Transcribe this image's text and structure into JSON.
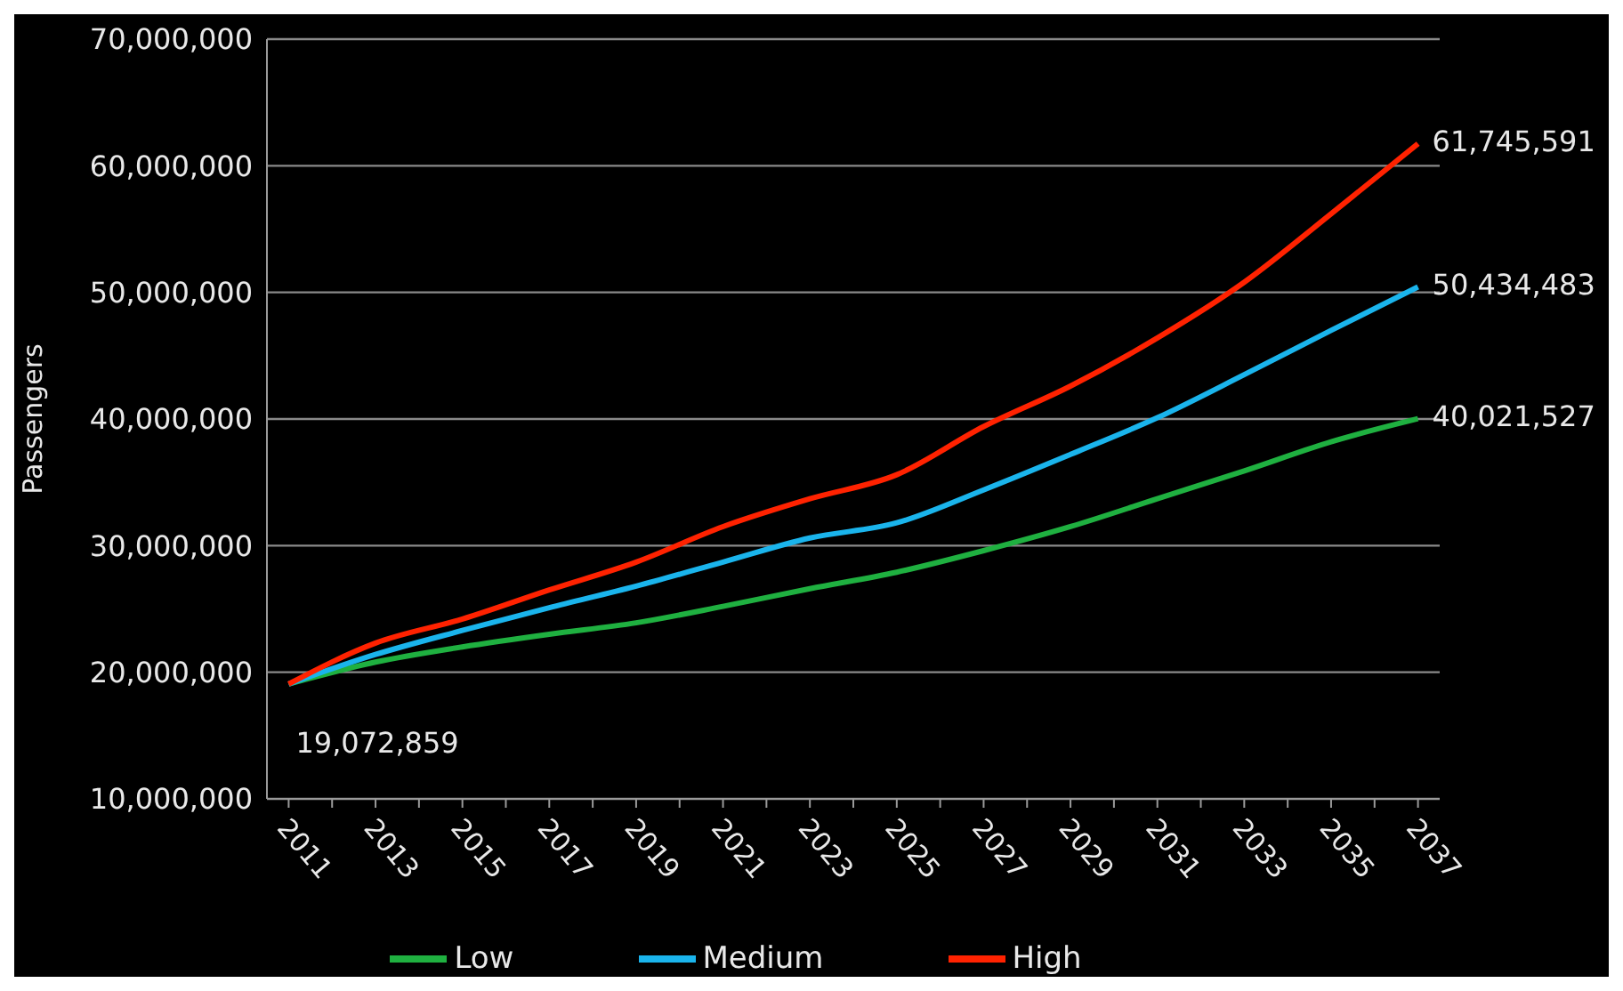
{
  "chart_data": {
    "type": "line",
    "ylabel": "Passengers",
    "x": [
      2011,
      2013,
      2015,
      2017,
      2019,
      2021,
      2023,
      2025,
      2027,
      2029,
      2031,
      2033,
      2035,
      2037
    ],
    "series": [
      {
        "name": "Low",
        "color": "#1fb040",
        "values": [
          19072859,
          20800000,
          22000000,
          23000000,
          23900000,
          25200000,
          26600000,
          27900000,
          29600000,
          31500000,
          33700000,
          35900000,
          38200000,
          40021527
        ],
        "value_labels": [
          "19,072,859",
          null,
          null,
          null,
          null,
          null,
          null,
          null,
          null,
          null,
          null,
          null,
          null,
          "40,021,527"
        ]
      },
      {
        "name": "Medium",
        "color": "#1ab4ec",
        "values": [
          19072859,
          21400000,
          23300000,
          25100000,
          26800000,
          28700000,
          30600000,
          31800000,
          34400000,
          37200000,
          40100000,
          43500000,
          47000000,
          50434483
        ],
        "value_labels": [
          null,
          null,
          null,
          null,
          null,
          null,
          null,
          null,
          null,
          null,
          null,
          null,
          null,
          "50,434,483"
        ]
      },
      {
        "name": "High",
        "color": "#ff2200",
        "values": [
          19072859,
          22300000,
          24200000,
          26500000,
          28700000,
          31500000,
          33700000,
          35600000,
          39400000,
          42600000,
          46400000,
          50800000,
          56200000,
          61745591
        ],
        "value_labels": [
          null,
          null,
          null,
          null,
          null,
          null,
          null,
          null,
          null,
          null,
          null,
          null,
          null,
          "61,745,591"
        ]
      }
    ],
    "xlim": [
      2010.5,
      2037.5
    ],
    "xticks": [
      {
        "value": 2011,
        "label": "2011"
      },
      {
        "value": 2012,
        "label": null
      },
      {
        "value": 2013,
        "label": "2013"
      },
      {
        "value": 2014,
        "label": null
      },
      {
        "value": 2015,
        "label": "2015"
      },
      {
        "value": 2016,
        "label": null
      },
      {
        "value": 2017,
        "label": "2017"
      },
      {
        "value": 2018,
        "label": null
      },
      {
        "value": 2019,
        "label": "2019"
      },
      {
        "value": 2020,
        "label": null
      },
      {
        "value": 2021,
        "label": "2021"
      },
      {
        "value": 2022,
        "label": null
      },
      {
        "value": 2023,
        "label": "2023"
      },
      {
        "value": 2024,
        "label": null
      },
      {
        "value": 2025,
        "label": "2025"
      },
      {
        "value": 2026,
        "label": null
      },
      {
        "value": 2027,
        "label": "2027"
      },
      {
        "value": 2028,
        "label": null
      },
      {
        "value": 2029,
        "label": "2029"
      },
      {
        "value": 2030,
        "label": null
      },
      {
        "value": 2031,
        "label": "2031"
      },
      {
        "value": 2032,
        "label": null
      },
      {
        "value": 2033,
        "label": "2033"
      },
      {
        "value": 2034,
        "label": null
      },
      {
        "value": 2035,
        "label": "2035"
      },
      {
        "value": 2036,
        "label": null
      },
      {
        "value": 2037,
        "label": "2037"
      }
    ],
    "ylim": [
      10000000,
      70000000
    ],
    "yticks": [
      {
        "value": 10000000,
        "label": "10,000,000"
      },
      {
        "value": 20000000,
        "label": "20,000,000"
      },
      {
        "value": 30000000,
        "label": "30,000,000"
      },
      {
        "value": 40000000,
        "label": "40,000,000"
      },
      {
        "value": 50000000,
        "label": "50,000,000"
      },
      {
        "value": 60000000,
        "label": "60,000,000"
      },
      {
        "value": 70000000,
        "label": "70,000,000"
      }
    ],
    "grid": "y",
    "legend": "bottom",
    "marker": "none",
    "line_style": "solid"
  }
}
